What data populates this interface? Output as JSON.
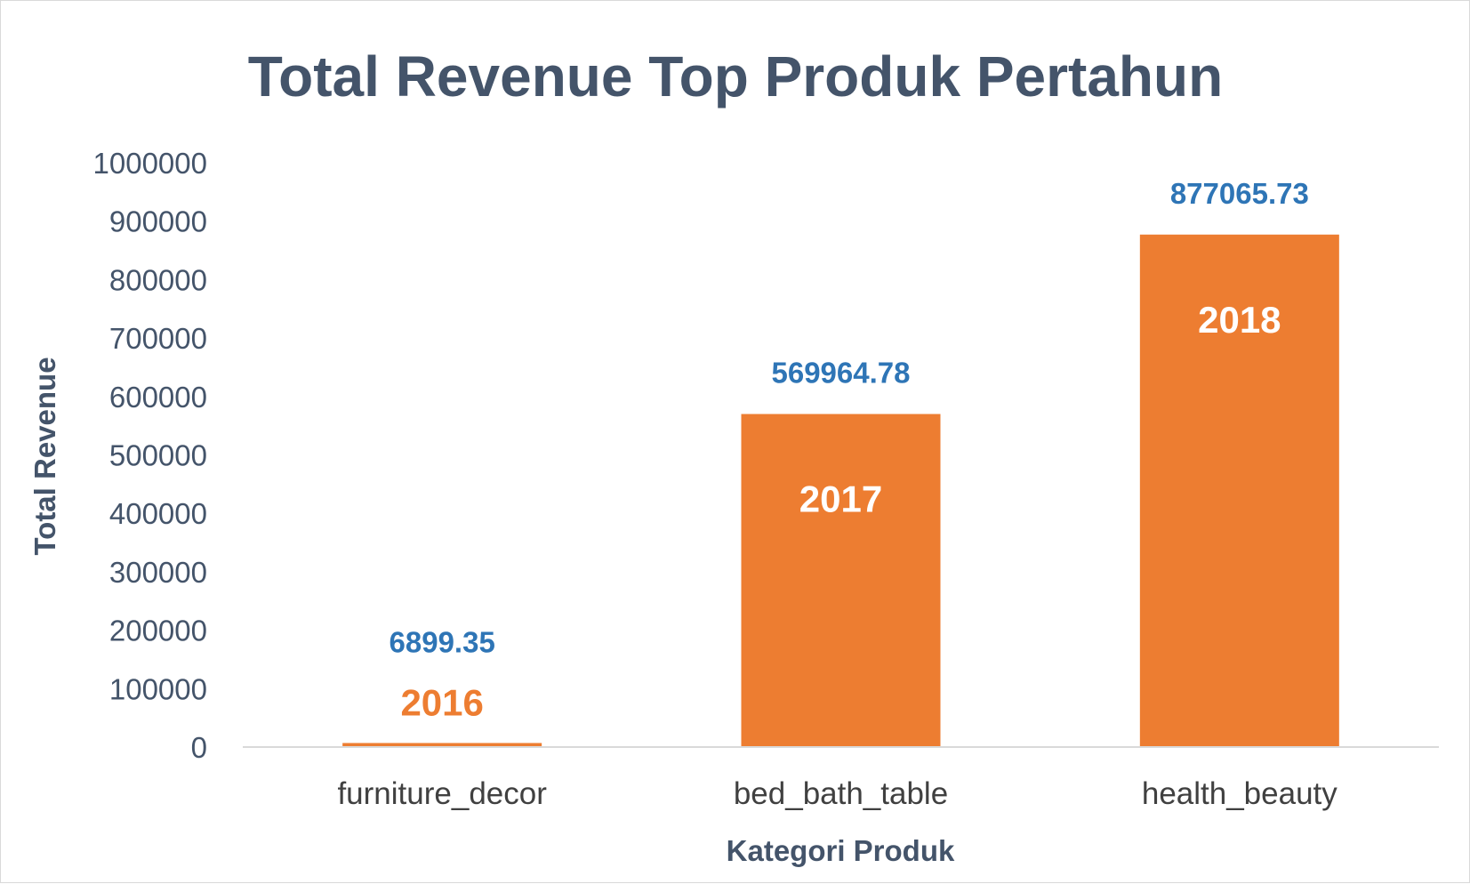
{
  "chart_data": {
    "type": "bar",
    "title": "Total Revenue Top Produk Pertahun",
    "xlabel": "Kategori Produk",
    "ylabel": "Total Revenue",
    "categories": [
      "furniture_decor",
      "bed_bath_table",
      "health_beauty"
    ],
    "values": [
      6899.35,
      569964.78,
      877065.73
    ],
    "value_labels": [
      "6899.35",
      "569964.78",
      "877065.73"
    ],
    "bar_labels": [
      "2016",
      "2017",
      "2018"
    ],
    "yticks": [
      "0",
      "100000",
      "200000",
      "300000",
      "400000",
      "500000",
      "600000",
      "700000",
      "800000",
      "900000",
      "1000000"
    ],
    "ylim": [
      0,
      1000000
    ],
    "grid": false,
    "legend": "none",
    "colors": {
      "bar": "#ed7d31",
      "value_label": "#2e75b6",
      "year_label_inside": "#ffffff",
      "year_label_outside": "#ed7d31",
      "text": "#44546a",
      "axis_line": "#d9d9d9"
    }
  }
}
